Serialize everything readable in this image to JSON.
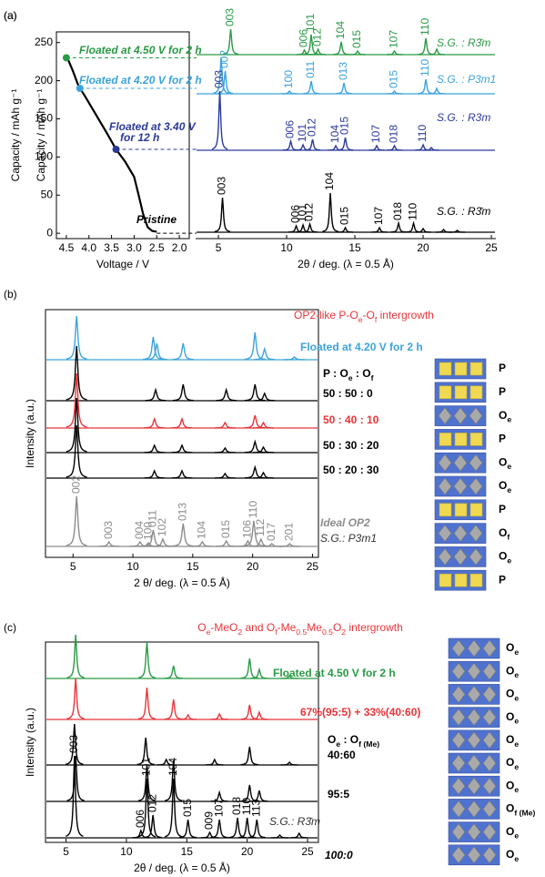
{
  "chart_data": [
    {
      "type": "line",
      "panel": "(a)",
      "xlabel": "Voltage / V",
      "ylabel": "Capacity / mAh g⁻¹",
      "color": "#000000",
      "xlim": [
        4.72,
        1.78
      ],
      "xticks": [
        4.5,
        {
          "value": 4,
          "label": "4.0"
        },
        3.5,
        {
          "value": 3,
          "label": "3.0"
        },
        2.5,
        {
          "value": 2,
          "label": "2.0"
        }
      ],
      "ylim": [
        -7,
        264
      ],
      "yticks": [
        0,
        50,
        100,
        150,
        200,
        250
      ],
      "x": [
        4.5,
        4.45,
        4.35,
        4.25,
        4.2,
        4.1,
        4.0,
        3.8,
        3.6,
        3.4,
        3.2,
        3.0,
        2.9,
        2.8,
        2.7,
        2.6,
        2.5
      ],
      "values": [
        230,
        226,
        212,
        196,
        190,
        181,
        171,
        151,
        131,
        110,
        94,
        74,
        50,
        25,
        8,
        3,
        2
      ],
      "points": {
        "x": [
          4.5,
          4.2,
          3.4
        ],
        "values": [
          230,
          190,
          110
        ],
        "colors": [
          "#2a9a45",
          "#3ba3dc",
          "#2b3a9a"
        ]
      },
      "annotations": [
        {
          "lines": [
            "Floated at 4.50 V for 2 h"
          ],
          "color": "#2a9a45"
        },
        {
          "lines": [
            "Floated at 4.20 V for 2 h"
          ],
          "color": "#3ba3dc"
        },
        {
          "lines": [
            "Floated at 3.40 V",
            "for 12 h"
          ],
          "color": "#2b3a9a"
        },
        {
          "lines": [
            "Pristine"
          ],
          "color": "#000000"
        }
      ]
    },
    {
      "type": "xrd",
      "xlabel": "2θ / deg. (λ = 0.5 Å)",
      "xlim": [
        3.33,
        25.33
      ],
      "xticks": [
        5,
        10,
        15,
        20,
        25
      ],
      "series": [
        {
          "name": "S.G. : R3̄m",
          "color": "#2a9a45",
          "peaks": [
            5.9,
            11.3,
            11.8,
            12.3,
            14.0,
            15.2,
            17.9,
            20.2,
            21.0
          ],
          "values": [
            28,
            5,
            22,
            6,
            14,
            4,
            4,
            18,
            6
          ],
          "peak_labels": [
            "003",
            "006",
            "101",
            "012",
            "104",
            "015",
            "107",
            "110",
            null
          ]
        },
        {
          "name": "S.G. : P3m1",
          "color": "#3ba3dc",
          "peaks": [
            5.2,
            5.5,
            10.2,
            11.8,
            14.2,
            17.9,
            20.2,
            21.0
          ],
          "values": [
            40,
            25,
            3,
            14,
            12,
            3,
            16,
            6
          ],
          "peak_labels": [
            null,
            "002",
            "100",
            "011",
            "013",
            "015",
            "110",
            null
          ]
        },
        {
          "name": "S.G. : R3m",
          "color": "#2b3a9a",
          "peaks": [
            5.1,
            10.3,
            11.2,
            11.9,
            13.6,
            14.3,
            16.6,
            17.9,
            20.0,
            20.6
          ],
          "values": [
            65,
            10,
            6,
            12,
            5,
            14,
            5,
            5,
            6,
            3
          ],
          "peak_labels": [
            "003",
            "006",
            "101",
            "012",
            "104",
            "015",
            "107",
            "018",
            "110",
            null
          ]
        },
        {
          "name": "S.G. : R3̄m",
          "color": "#000000",
          "peaks": [
            5.3,
            10.7,
            11.2,
            11.7,
            13.2,
            14.3,
            16.8,
            18.2,
            19.3,
            20.0,
            21.5,
            22.5
          ],
          "values": [
            38,
            7,
            8,
            9,
            43,
            5,
            5,
            10,
            10,
            4,
            3,
            2
          ],
          "peak_labels": [
            "003",
            "006",
            "101",
            "012",
            "104",
            "015",
            "107",
            "018",
            "110",
            null,
            null,
            null
          ]
        }
      ]
    },
    {
      "type": "xrd",
      "panel": "(b)",
      "title": "OP2-like P-O_e-O_f intergrowth",
      "xlabel": "2 θ/ deg. (λ = 0.5 Å)",
      "ylabel": "Intensity (a.u.)",
      "ratio_header": "P : O_e : O_f",
      "xlim": [
        2.7,
        25.5
      ],
      "xticks": [
        5,
        10,
        15,
        20,
        25
      ],
      "series": [
        {
          "name": "Floated at 4.20 V for 2 h",
          "color": "#3ba3dc",
          "peaks": [
            5.3,
            11.7,
            12.0,
            14.2,
            20.2,
            21.0,
            23.5
          ],
          "values": [
            48,
            25,
            18,
            18,
            30,
            12,
            3
          ]
        },
        {
          "name": "50 : 50 : 0",
          "color": "#000000",
          "peaks": [
            5.3,
            11.9,
            14.2,
            17.8,
            20.2,
            21.0
          ],
          "values": [
            60,
            12,
            18,
            12,
            18,
            8
          ]
        },
        {
          "name": "50 : 40 : 10",
          "color": "#e8343a",
          "peaks": [
            5.3,
            11.8,
            14.1,
            17.7,
            20.2,
            20.9
          ],
          "values": [
            60,
            10,
            10,
            6,
            14,
            6
          ]
        },
        {
          "name": "50 : 30 : 20",
          "color": "#000000",
          "peaks": [
            5.3,
            11.8,
            14.1,
            17.7,
            20.2,
            20.9
          ],
          "values": [
            60,
            8,
            8,
            5,
            12,
            6
          ]
        },
        {
          "name": "50 : 20 : 30",
          "color": "#000000",
          "peaks": [
            5.3,
            11.8,
            14.1,
            17.7,
            20.2,
            20.9
          ],
          "values": [
            58,
            8,
            8,
            5,
            12,
            6
          ]
        },
        {
          "name": "Ideal OP2",
          "sg": "S.G.: P3m1",
          "color": "#8c8c8c",
          "peaks": [
            5.3,
            8.0,
            10.6,
            11.3,
            11.7,
            12.5,
            14.2,
            15.8,
            17.8,
            19.6,
            20.1,
            20.7,
            21.6,
            23.1
          ],
          "values": [
            55,
            5,
            5,
            4,
            18,
            8,
            25,
            5,
            6,
            6,
            28,
            8,
            3,
            3
          ],
          "peak_labels": [
            "002",
            "003",
            "004",
            "100",
            "011",
            "102",
            "013",
            "104",
            "015",
            "106",
            "110",
            "112",
            "017",
            "201"
          ]
        }
      ],
      "stacking": [
        "P",
        "P",
        "O_e",
        "P",
        "O_e",
        "O_e",
        "P",
        "O_f",
        "O_e",
        "P"
      ]
    },
    {
      "type": "xrd",
      "panel": "(c)",
      "title": "O_e-MeO_2 and O_f-Me_{0.5}Me_{0.5}O_2 intergrowth",
      "xlabel": "2θ / deg. (λ = 0.5 Å)",
      "ylabel": "Intensity (a.u.)",
      "ratio_header": "O_e : O_{f (Me)}",
      "xlim": [
        3.3,
        25.9
      ],
      "xticks": [
        5,
        10,
        15,
        20,
        25
      ],
      "series": [
        {
          "name": "Floated at 4.50 V for 2 h",
          "color": "#2a9a45",
          "peaks": [
            5.8,
            11.7,
            13.9,
            20.2,
            21.0,
            23.5
          ],
          "values": [
            48,
            40,
            14,
            22,
            10,
            3
          ]
        },
        {
          "name": "67%(95:5) + 33%(40:60)",
          "color": "#e8343a",
          "peaks": [
            5.8,
            11.7,
            13.9,
            15.1,
            17.7,
            20.2,
            21.0
          ],
          "values": [
            45,
            35,
            22,
            5,
            6,
            16,
            8
          ]
        },
        {
          "name": "40:60",
          "color": "#000000",
          "peaks": [
            5.7,
            11.6,
            13.3,
            17.3,
            20.2,
            23.5
          ],
          "values": [
            45,
            30,
            6,
            6,
            20,
            3
          ]
        },
        {
          "name": "95:5",
          "color": "#000000",
          "peaks": [
            5.8,
            11.7,
            13.9,
            17.7,
            20.2,
            21.0
          ],
          "values": [
            50,
            40,
            45,
            10,
            18,
            12
          ]
        },
        {
          "name": "100:0",
          "sg": "S.G.: R3̄m",
          "color": "#000000",
          "peaks": [
            5.7,
            11.2,
            11.7,
            12.2,
            13.9,
            15.1,
            16.9,
            17.7,
            19.2,
            20.0,
            20.8,
            22.7,
            24.3
          ],
          "values": [
            90,
            8,
            65,
            25,
            65,
            20,
            6,
            20,
            22,
            22,
            20,
            3,
            5
          ],
          "peak_labels": [
            "003",
            "006",
            "101",
            "012",
            "104",
            "015",
            "009",
            "107",
            "018",
            "110",
            "113",
            null,
            null
          ]
        }
      ],
      "stacking": [
        "O_e",
        "O_e",
        "O_e",
        "O_e",
        "O_e",
        "O_e",
        "O_e",
        "O_{f (Me)}",
        "O_e",
        "O_e"
      ]
    }
  ]
}
